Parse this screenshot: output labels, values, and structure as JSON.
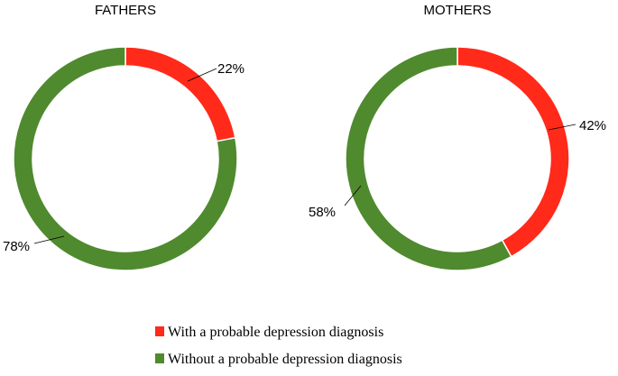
{
  "chart_data": [
    {
      "type": "pie",
      "title": "FATHERS",
      "categories": [
        "With a probable depression diagnosis",
        "Without a probable depression diagnosis"
      ],
      "values": [
        22,
        78
      ],
      "labels": [
        "22%",
        "78%"
      ],
      "colors": [
        "#ff2a1a",
        "#4f8a2e"
      ]
    },
    {
      "type": "pie",
      "title": "MOTHERS",
      "categories": [
        "With a probable depression diagnosis",
        "Without a probable depression diagnosis"
      ],
      "values": [
        42,
        58
      ],
      "labels": [
        "42%",
        "58%"
      ],
      "colors": [
        "#ff2a1a",
        "#4f8a2e"
      ]
    }
  ],
  "legend": {
    "placement": "bottom",
    "items": [
      {
        "label": "With a probable depression diagnosis",
        "color": "#ff2a1a"
      },
      {
        "label": "Without a probable depression diagnosis",
        "color": "#4f8a2e"
      }
    ]
  }
}
